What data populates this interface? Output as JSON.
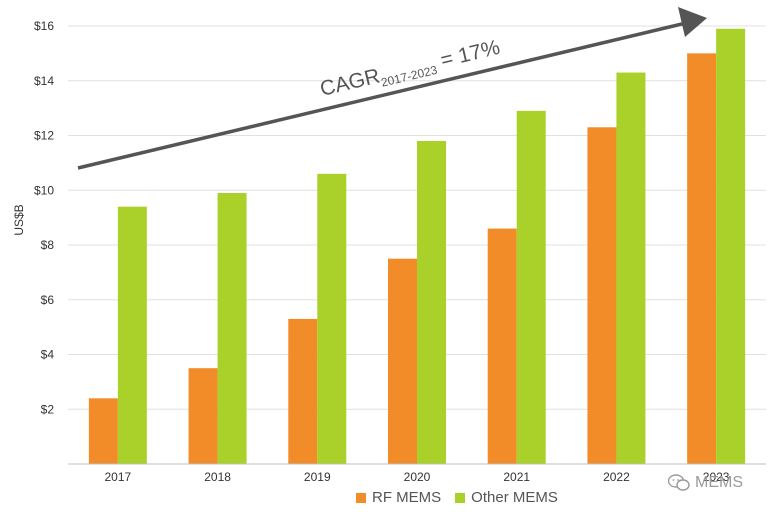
{
  "chart_data": {
    "type": "bar",
    "ylabel": "US$B",
    "categories": [
      "2017",
      "2018",
      "2019",
      "2020",
      "2021",
      "2022",
      "2023"
    ],
    "series": [
      {
        "name": "RF MEMS",
        "color": "#f28c28",
        "values": [
          2.4,
          3.5,
          5.3,
          7.5,
          8.6,
          12.3,
          15.0
        ]
      },
      {
        "name": "Other MEMS",
        "color": "#aad12a",
        "values": [
          9.4,
          9.9,
          10.6,
          11.8,
          12.9,
          14.3,
          15.9
        ]
      }
    ],
    "ylim": [
      0,
      16
    ],
    "yticks": [
      2,
      4,
      6,
      8,
      10,
      12,
      14,
      16
    ],
    "ytick_labels": [
      "$2",
      "$4",
      "$6",
      "$8",
      "$10",
      "$12",
      "$14",
      "$16"
    ],
    "grid": true,
    "legend_position": "bottom",
    "annotation": {
      "text_main": "CAGR",
      "text_sub": "2017-2023",
      "text_rest": " = 17%",
      "arrow": true
    }
  },
  "watermark": {
    "text": "MEMS",
    "icon": "wechat-icon"
  }
}
